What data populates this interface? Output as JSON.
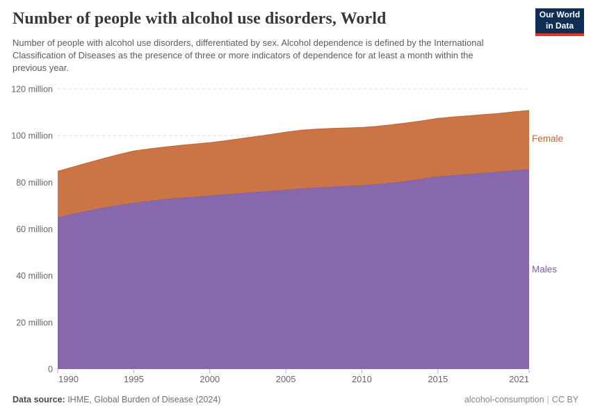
{
  "header": {
    "title": "Number of people with alcohol use disorders, World",
    "subtitle": "Number of people with alcohol use disorders, differentiated by sex. Alcohol dependence is defined by the International Classification of Diseases as the presence of three or more indicators of dependence for at least a month within the previous year.",
    "logo": {
      "line1": "Our World",
      "line2": "in Data"
    }
  },
  "chart_data": {
    "type": "area",
    "stacked": true,
    "title": "Number of people with alcohol use disorders, World",
    "xlabel": "",
    "ylabel": "",
    "unit": "million",
    "ylim": [
      0,
      120
    ],
    "grid": "horizontal-dashed",
    "legend_position": "right",
    "x": [
      1990,
      1991,
      1992,
      1993,
      1994,
      1995,
      1996,
      1997,
      1998,
      1999,
      2000,
      2001,
      2002,
      2003,
      2004,
      2005,
      2006,
      2007,
      2008,
      2009,
      2010,
      2011,
      2012,
      2013,
      2014,
      2015,
      2016,
      2017,
      2018,
      2019,
      2020,
      2021
    ],
    "series": [
      {
        "name": "Males",
        "color": "#8868AD",
        "edge_color": "#7a58a2",
        "label_color": "#7C5BA5",
        "values": [
          65.0,
          66.5,
          67.9,
          69.1,
          70.2,
          71.2,
          72.0,
          72.7,
          73.3,
          73.8,
          74.3,
          74.8,
          75.3,
          75.8,
          76.3,
          76.8,
          77.3,
          77.7,
          78.1,
          78.4,
          78.7,
          79.2,
          79.8,
          80.6,
          81.5,
          82.5,
          83.0,
          83.5,
          84.0,
          84.5,
          85.1,
          85.6
        ]
      },
      {
        "name": "Female",
        "color": "#CB7547",
        "edge_color": "#bd6536",
        "label_color": "#C4653A",
        "values": [
          19.7,
          20.1,
          20.5,
          21.1,
          21.7,
          22.2,
          22.3,
          22.4,
          22.5,
          22.6,
          22.7,
          23.0,
          23.4,
          23.8,
          24.2,
          24.7,
          25.0,
          25.1,
          25.0,
          24.9,
          24.8,
          24.8,
          24.9,
          24.9,
          24.9,
          24.9,
          25.0,
          25.0,
          25.0,
          25.0,
          25.1,
          25.2
        ]
      }
    ],
    "yticks": [
      {
        "v": 0,
        "label": "0"
      },
      {
        "v": 20,
        "label": "20 million"
      },
      {
        "v": 40,
        "label": "40 million"
      },
      {
        "v": 60,
        "label": "60 million"
      },
      {
        "v": 80,
        "label": "80 million"
      },
      {
        "v": 100,
        "label": "100 million"
      },
      {
        "v": 120,
        "label": "120 million"
      }
    ],
    "xticks": [
      1990,
      1995,
      2000,
      2005,
      2010,
      2015,
      2021
    ]
  },
  "footer": {
    "source_label": "Data source:",
    "source_value": " IHME, Global Burden of Disease (2024)",
    "right_text": "alcohol-consumption",
    "separator": "|",
    "license": "CC BY"
  }
}
